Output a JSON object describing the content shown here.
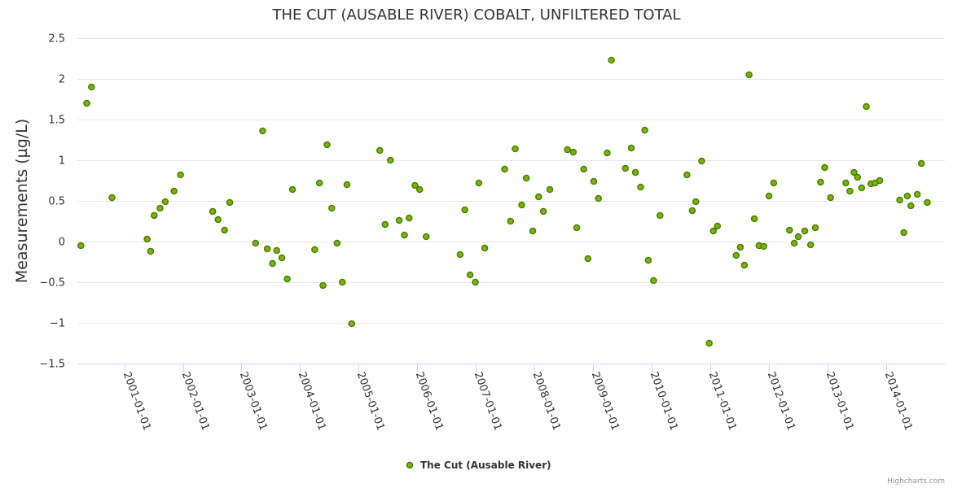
{
  "chart_data": {
    "type": "scatter",
    "title": "THE CUT (AUSABLE RIVER) COBALT, UNFILTERED TOTAL",
    "xlabel": "",
    "ylabel": "Measurements (µg/L)",
    "ylim": [
      -1.5,
      2.5
    ],
    "xlim": [
      2000.2,
      2015.0
    ],
    "y_ticks": [
      2.5,
      2,
      1.5,
      1,
      0.5,
      0,
      -0.5,
      -1,
      -1.5
    ],
    "y_tick_labels": [
      "2.5",
      "2",
      "1.5",
      "1",
      "0.5",
      "0",
      "−0.5",
      "−1",
      "−1.5"
    ],
    "x_ticks": [
      2001,
      2002,
      2003,
      2004,
      2005,
      2006,
      2007,
      2008,
      2009,
      2010,
      2011,
      2012,
      2013,
      2014
    ],
    "x_tick_labels": [
      "2001-01-01",
      "2002-01-01",
      "2003-01-01",
      "2004-01-01",
      "2005-01-01",
      "2006-01-01",
      "2007-01-01",
      "2008-01-01",
      "2009-01-01",
      "2010-01-01",
      "2011-01-01",
      "2012-01-01",
      "2013-01-01",
      "2014-01-01"
    ],
    "grid": true,
    "legend_position": "bottom-center",
    "series": [
      {
        "name": "The Cut (Ausable River)",
        "color": "#7cb30a",
        "marker_stroke": "#4a7d00",
        "x": [
          2000.26,
          2000.36,
          2000.44,
          2000.79,
          2001.39,
          2001.45,
          2001.51,
          2001.61,
          2001.7,
          2001.85,
          2001.96,
          2002.51,
          2002.6,
          2002.71,
          2002.8,
          2003.24,
          2003.36,
          2003.44,
          2003.53,
          2003.6,
          2003.69,
          2003.78,
          2003.87,
          2004.25,
          2004.33,
          2004.39,
          2004.46,
          2004.54,
          2004.63,
          2004.72,
          2004.8,
          2004.88,
          2005.36,
          2005.45,
          2005.54,
          2005.69,
          2005.78,
          2005.86,
          2005.96,
          2006.04,
          2006.15,
          2006.73,
          2006.81,
          2006.9,
          2006.99,
          2007.05,
          2007.15,
          2007.49,
          2007.59,
          2007.67,
          2007.78,
          2007.86,
          2007.97,
          2008.07,
          2008.15,
          2008.26,
          2008.56,
          2008.66,
          2008.72,
          2008.84,
          2008.91,
          2009.01,
          2009.09,
          2009.24,
          2009.31,
          2009.55,
          2009.65,
          2009.72,
          2009.81,
          2009.88,
          2009.94,
          2010.03,
          2010.14,
          2010.6,
          2010.69,
          2010.75,
          2010.85,
          2010.98,
          2011.05,
          2011.12,
          2011.44,
          2011.51,
          2011.58,
          2011.66,
          2011.75,
          2011.83,
          2011.91,
          2012.0,
          2012.08,
          2012.35,
          2012.43,
          2012.5,
          2012.61,
          2012.71,
          2012.79,
          2012.88,
          2012.95,
          2013.05,
          2013.31,
          2013.38,
          2013.45,
          2013.51,
          2013.58,
          2013.66,
          2013.74,
          2013.81,
          2013.89,
          2014.23,
          2014.3,
          2014.36,
          2014.42,
          2014.53,
          2014.6,
          2014.7
        ],
        "y": [
          -0.05,
          1.7,
          1.9,
          0.54,
          0.03,
          -0.12,
          0.32,
          0.41,
          0.49,
          0.62,
          0.82,
          0.37,
          0.27,
          0.14,
          0.48,
          -0.02,
          1.36,
          -0.09,
          -0.27,
          -0.11,
          -0.2,
          -0.46,
          0.64,
          -0.1,
          0.72,
          -0.54,
          1.19,
          0.41,
          -0.02,
          -0.5,
          0.7,
          -1.01,
          1.12,
          0.21,
          1.0,
          0.26,
          0.08,
          0.29,
          0.69,
          0.64,
          0.06,
          -0.16,
          0.39,
          -0.41,
          -0.5,
          0.72,
          -0.08,
          0.89,
          0.25,
          1.14,
          0.45,
          0.78,
          0.13,
          0.55,
          0.37,
          0.64,
          1.13,
          1.1,
          0.17,
          0.89,
          -0.21,
          0.74,
          0.53,
          1.09,
          2.23,
          0.9,
          1.15,
          0.85,
          0.67,
          1.37,
          -0.23,
          -0.48,
          0.32,
          0.82,
          0.38,
          0.49,
          0.99,
          -1.25,
          0.13,
          0.19,
          -0.17,
          -0.07,
          -0.29,
          2.05,
          0.28,
          -0.05,
          -0.06,
          0.56,
          0.72,
          0.14,
          -0.02,
          0.06,
          0.13,
          -0.04,
          0.17,
          0.73,
          0.91,
          0.54,
          0.72,
          0.62,
          0.85,
          0.79,
          0.66,
          1.66,
          0.71,
          0.72,
          0.75,
          0.51,
          0.11,
          0.56,
          0.44,
          0.58,
          0.96,
          0.48
        ]
      }
    ]
  },
  "credits": "Highcharts.com"
}
